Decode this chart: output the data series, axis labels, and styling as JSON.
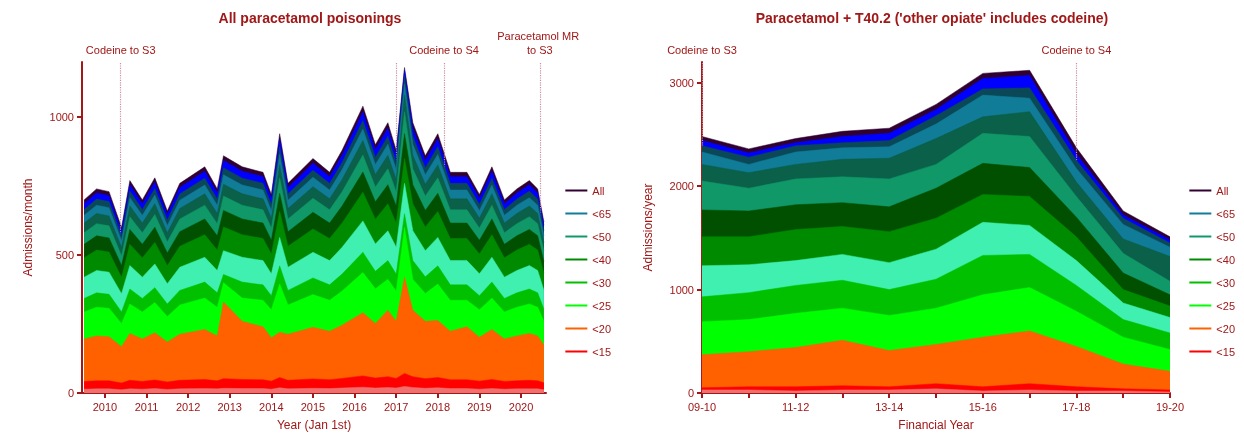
{
  "chart_data": [
    {
      "type": "area",
      "title": "All paracetamol poisonings",
      "xlabel": "Year (Jan 1st)",
      "ylabel": "Admissions/month",
      "marker": "none",
      "legend": "right",
      "xlim": [
        2009.45,
        2020.6
      ],
      "xticks": [
        2010,
        2011,
        2012,
        2013,
        2014,
        2015,
        2016,
        2017,
        2018,
        2019,
        2020
      ],
      "ylim": [
        0,
        1200
      ],
      "yticks": [
        0,
        500,
        1000
      ],
      "x": [
        2009.5,
        2009.8,
        2010.1,
        2010.4,
        2010.6,
        2010.9,
        2011.2,
        2011.5,
        2011.8,
        2012.4,
        2012.7,
        2012.85,
        2013.3,
        2013.8,
        2014.0,
        2014.2,
        2014.4,
        2015.0,
        2015.4,
        2015.7,
        2016.2,
        2016.5,
        2016.8,
        2017.0,
        2017.2,
        2017.4,
        2017.7,
        2018.0,
        2018.3,
        2018.7,
        2019.0,
        2019.3,
        2019.6,
        2019.9,
        2020.2,
        2020.4,
        2020.55
      ],
      "ref_lines": [
        {
          "axis": "x",
          "value": 2010.38,
          "label": "Codeine to S3",
          "color": "#c890a0",
          "line_style": "dotted"
        },
        {
          "axis": "x",
          "value": 2017.0,
          "label": null,
          "color": "#c890a0",
          "line_style": "dotted"
        },
        {
          "axis": "x",
          "value": 2018.15,
          "label": "Codeine to S4",
          "color": "#c890a0",
          "line_style": "dotted"
        },
        {
          "axis": "x",
          "value": 2020.45,
          "label": "Paracetamol MR to S3",
          "color": "#c890a0",
          "line_style": "dotted"
        }
      ],
      "series": [
        {
          "color": "#f07070",
          "values": [
            14,
            15,
            15,
            12,
            15,
            14,
            16,
            13,
            15,
            16,
            15,
            17,
            16,
            16,
            14,
            19,
            15,
            17,
            16,
            18,
            21,
            18,
            20,
            18,
            24,
            20,
            17,
            19,
            16,
            16,
            14,
            16,
            14,
            15,
            15,
            15,
            12
          ]
        },
        {
          "name": "<15",
          "color": "#ff0000",
          "values": [
            42,
            44,
            44,
            36,
            46,
            42,
            47,
            40,
            46,
            49,
            44,
            52,
            49,
            48,
            43,
            56,
            46,
            51,
            48,
            53,
            62,
            54,
            59,
            53,
            71,
            59,
            52,
            56,
            48,
            48,
            43,
            49,
            42,
            44,
            46,
            44,
            37
          ]
        },
        {
          "name": "<20",
          "color": "#ff6000",
          "values": [
            196,
            207,
            204,
            168,
            216,
            196,
            218,
            185,
            213,
            230,
            207,
            330,
            260,
            240,
            200,
            220,
            213,
            238,
            224,
            246,
            291,
            252,
            300,
            260,
            420,
            300,
            260,
            263,
            224,
            240,
            202,
            230,
            196,
            207,
            216,
            207,
            174
          ]
        },
        {
          "name": "<25",
          "color": "#00ff00",
          "values": [
            294,
            311,
            307,
            252,
            323,
            294,
            328,
            277,
            319,
            344,
            311,
            400,
            344,
            336,
            302,
            395,
            319,
            357,
            336,
            370,
            437,
            378,
            412,
            370,
            600,
            412,
            361,
            395,
            336,
            336,
            302,
            344,
            294,
            311,
            323,
            311,
            260
          ]
        },
        {
          "name": "<30",
          "color": "#00c000",
          "values": [
            343,
            363,
            358,
            294,
            377,
            343,
            382,
            323,
            372,
            402,
            363,
            430,
            402,
            392,
            353,
            461,
            372,
            417,
            392,
            431,
            510,
            441,
            480,
            431,
            650,
            480,
            421,
            461,
            392,
            392,
            353,
            402,
            343,
            363,
            377,
            363,
            304
          ]
        },
        {
          "color": "#40f0b0",
          "values": [
            420,
            444,
            438,
            360,
            462,
            420,
            468,
            396,
            456,
            492,
            444,
            516,
            492,
            480,
            432,
            564,
            456,
            510,
            480,
            528,
            624,
            540,
            588,
            528,
            760,
            588,
            516,
            564,
            480,
            480,
            432,
            492,
            420,
            444,
            462,
            444,
            372
          ]
        },
        {
          "name": "<40",
          "color": "#008a00",
          "values": [
            490,
            518,
            511,
            420,
            539,
            490,
            546,
            462,
            532,
            574,
            518,
            602,
            574,
            560,
            504,
            658,
            532,
            595,
            560,
            616,
            728,
            630,
            686,
            616,
            850,
            686,
            602,
            658,
            560,
            560,
            504,
            574,
            490,
            518,
            539,
            518,
            434
          ]
        },
        {
          "color": "#005000",
          "values": [
            539,
            570,
            562,
            462,
            593,
            539,
            601,
            508,
            585,
            631,
            570,
            662,
            631,
            616,
            554,
            724,
            585,
            655,
            616,
            678,
            801,
            693,
            755,
            678,
            940,
            755,
            662,
            724,
            616,
            616,
            554,
            631,
            539,
            570,
            593,
            570,
            477
          ]
        },
        {
          "name": "<50",
          "color": "#109868",
          "values": [
            581,
            614,
            606,
            498,
            639,
            581,
            647,
            548,
            631,
            681,
            614,
            714,
            681,
            664,
            598,
            780,
            631,
            706,
            664,
            730,
            863,
            747,
            813,
            730,
            1020,
            813,
            714,
            780,
            664,
            664,
            598,
            681,
            581,
            614,
            639,
            614,
            515
          ]
        },
        {
          "color": "#0a6048",
          "values": [
            616,
            651,
            642,
            528,
            678,
            616,
            686,
            581,
            669,
            722,
            651,
            757,
            722,
            704,
            634,
            827,
            669,
            748,
            704,
            774,
            915,
            792,
            862,
            774,
            1080,
            862,
            757,
            827,
            704,
            704,
            634,
            722,
            616,
            651,
            678,
            651,
            546
          ]
        },
        {
          "name": "<65",
          "color": "#107c98",
          "values": [
            644,
            681,
            672,
            552,
            708,
            644,
            718,
            607,
            699,
            754,
            681,
            791,
            754,
            736,
            662,
            865,
            699,
            782,
            736,
            810,
            957,
            828,
            902,
            810,
            1120,
            902,
            791,
            865,
            736,
            736,
            662,
            754,
            644,
            681,
            708,
            681,
            570
          ]
        },
        {
          "color": "#0a4858",
          "values": [
            665,
            703,
            694,
            570,
            732,
            665,
            741,
            627,
            722,
            779,
            703,
            817,
            779,
            760,
            684,
            893,
            722,
            808,
            760,
            836,
            988,
            855,
            931,
            836,
            1150,
            931,
            817,
            893,
            760,
            760,
            684,
            779,
            665,
            703,
            732,
            703,
            589
          ]
        },
        {
          "color": "#0000ff",
          "values": [
            686,
            725,
            715,
            588,
            755,
            686,
            764,
            647,
            745,
            804,
            725,
            843,
            804,
            784,
            706,
            921,
            745,
            833,
            784,
            862,
            1019,
            882,
            960,
            862,
            1170,
            960,
            843,
            921,
            784,
            784,
            706,
            804,
            686,
            725,
            755,
            725,
            608
          ]
        },
        {
          "name": "All",
          "color": "#300030",
          "values": [
            700,
            740,
            730,
            600,
            770,
            700,
            780,
            660,
            760,
            820,
            740,
            860,
            820,
            800,
            720,
            940,
            760,
            850,
            800,
            880,
            1040,
            900,
            980,
            880,
            1180,
            980,
            860,
            940,
            800,
            800,
            720,
            820,
            700,
            740,
            770,
            740,
            620
          ]
        }
      ]
    },
    {
      "type": "area",
      "title": "Paracetamol + T40.2 ('other opiate' includes codeine)",
      "xlabel": "Financial Year",
      "ylabel": "Admissions/year",
      "marker": "none",
      "legend": "right",
      "categories": [
        "09-10",
        null,
        "11-12",
        null,
        "13-14",
        null,
        "15-16",
        null,
        "17-18",
        null,
        "19-20"
      ],
      "ylim": [
        0,
        3200
      ],
      "yticks": [
        0,
        1000,
        2000,
        3000
      ],
      "ref_lines": [
        {
          "axis": "x",
          "value": "09-10",
          "label": "Codeine to S3",
          "color": "#c890a0",
          "line_style": "dotted"
        },
        {
          "axis": "x",
          "value": "17-18",
          "label": "Codeine to S4",
          "color": "#c890a0",
          "line_style": "dotted"
        }
      ],
      "series": [
        {
          "color": "#f07070",
          "values": [
            30,
            30,
            20,
            30,
            30,
            40,
            20,
            30,
            20,
            20,
            10
          ]
        },
        {
          "name": "<15",
          "color": "#ff0000",
          "values": [
            50,
            60,
            60,
            70,
            60,
            90,
            60,
            90,
            60,
            40,
            30
          ]
        },
        {
          "name": "<20",
          "color": "#ff6000",
          "values": [
            370,
            400,
            440,
            510,
            410,
            470,
            540,
            600,
            450,
            280,
            210
          ]
        },
        {
          "name": "<25",
          "color": "#00ff00",
          "values": [
            690,
            710,
            770,
            820,
            750,
            820,
            950,
            1020,
            790,
            540,
            420
          ]
        },
        {
          "name": "<30",
          "color": "#00c000",
          "values": [
            930,
            970,
            1040,
            1090,
            1000,
            1100,
            1330,
            1340,
            1040,
            710,
            580
          ]
        },
        {
          "color": "#40f0b0",
          "values": [
            1230,
            1240,
            1280,
            1340,
            1260,
            1390,
            1650,
            1620,
            1280,
            870,
            730
          ]
        },
        {
          "name": "<40",
          "color": "#008a00",
          "values": [
            1510,
            1510,
            1580,
            1610,
            1560,
            1690,
            1920,
            1900,
            1510,
            1000,
            840
          ]
        },
        {
          "color": "#005000",
          "values": [
            1770,
            1760,
            1820,
            1840,
            1800,
            1980,
            2220,
            2180,
            1700,
            1160,
            950
          ]
        },
        {
          "name": "<50",
          "color": "#109868",
          "values": [
            2050,
            1980,
            2070,
            2090,
            2070,
            2210,
            2510,
            2480,
            1900,
            1350,
            1080
          ]
        },
        {
          "color": "#0a6048",
          "values": [
            2210,
            2130,
            2210,
            2260,
            2270,
            2460,
            2670,
            2720,
            2040,
            1490,
            1320
          ]
        },
        {
          "name": "<65",
          "color": "#107c98",
          "values": [
            2330,
            2210,
            2330,
            2370,
            2380,
            2600,
            2880,
            2850,
            2170,
            1630,
            1410
          ]
        },
        {
          "color": "#0a4858",
          "values": [
            2390,
            2280,
            2390,
            2420,
            2440,
            2680,
            2940,
            2950,
            2250,
            1690,
            1450
          ]
        },
        {
          "color": "#0000ff",
          "values": [
            2440,
            2320,
            2420,
            2480,
            2510,
            2740,
            3040,
            3070,
            2310,
            1720,
            1480
          ]
        },
        {
          "name": "All",
          "color": "#300030",
          "values": [
            2480,
            2360,
            2460,
            2530,
            2560,
            2790,
            3090,
            3120,
            2370,
            1760,
            1510
          ]
        }
      ]
    }
  ]
}
